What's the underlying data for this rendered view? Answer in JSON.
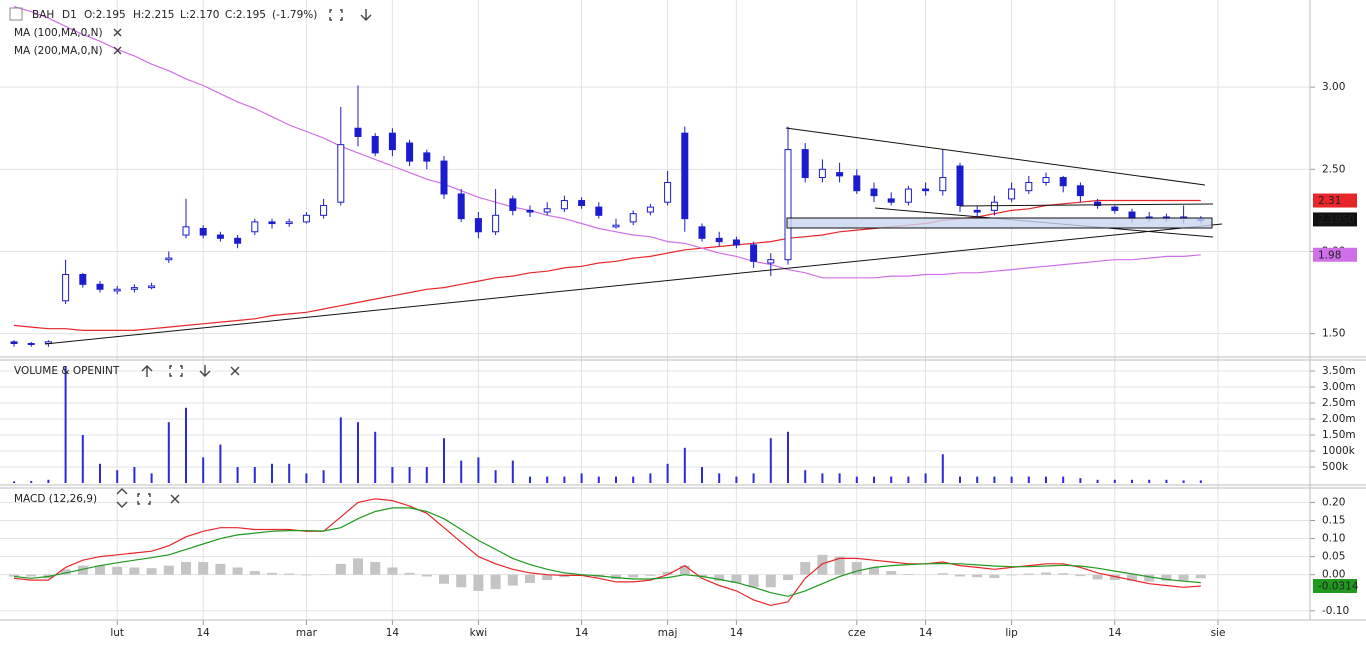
{
  "chart_data": [
    {
      "type": "candlestick",
      "title": "BAH",
      "subtitle": "D1",
      "ohlc": [
        "O:2.195",
        "H:2.215",
        "L:2.170",
        "C:2.195",
        "(-1.79%)"
      ],
      "color": "#1c1ccf",
      "close_label": "2.1950",
      "ylim": [
        1.37,
        3.5
      ],
      "yticks": [
        {
          "value": 1.5,
          "label": "1.50"
        },
        {
          "value": 2,
          "label": "2.00"
        },
        {
          "value": 2.5,
          "label": "2.50"
        },
        {
          "value": 3,
          "label": "3.00"
        }
      ],
      "grid": true,
      "open": [
        1.45,
        1.44,
        1.44,
        1.7,
        1.86,
        1.8,
        1.76,
        1.77,
        1.78,
        1.95,
        2.1,
        2.14,
        2.1,
        2.08,
        2.12,
        2.18,
        2.17,
        2.18,
        2.22,
        2.3,
        2.75,
        2.7,
        2.72,
        2.66,
        2.6,
        2.55,
        2.35,
        2.2,
        2.12,
        2.32,
        2.25,
        2.24,
        2.26,
        2.31,
        2.27,
        2.15,
        2.18,
        2.24,
        2.3,
        2.72,
        2.15,
        2.08,
        2.07,
        2.04,
        1.93,
        1.95,
        2.62,
        2.45,
        2.48,
        2.46,
        2.38,
        2.32,
        2.3,
        2.38,
        2.37,
        2.52,
        2.25,
        2.25,
        2.32,
        2.37,
        2.42,
        2.45,
        2.4,
        2.3,
        2.27,
        2.24,
        2.2,
        2.21,
        2.2,
        2.195,
        null
      ],
      "high": [
        1.46,
        1.45,
        1.46,
        1.95,
        1.87,
        1.82,
        1.79,
        1.8,
        1.81,
        2.0,
        2.32,
        2.16,
        2.12,
        2.1,
        2.2,
        2.2,
        2.2,
        2.24,
        2.32,
        2.88,
        3.01,
        2.72,
        2.75,
        2.68,
        2.62,
        2.58,
        2.38,
        2.24,
        2.38,
        2.34,
        2.28,
        2.3,
        2.34,
        2.33,
        2.3,
        2.2,
        2.25,
        2.29,
        2.49,
        2.76,
        2.17,
        2.12,
        2.09,
        2.06,
        1.99,
        2.76,
        2.66,
        2.56,
        2.54,
        2.5,
        2.42,
        2.36,
        2.4,
        2.42,
        2.62,
        2.54,
        2.28,
        2.34,
        2.42,
        2.46,
        2.48,
        2.46,
        2.42,
        2.32,
        2.28,
        2.26,
        2.24,
        2.23,
        2.28,
        2.215,
        null
      ],
      "low": [
        1.42,
        1.42,
        1.42,
        1.68,
        1.78,
        1.75,
        1.74,
        1.75,
        1.77,
        1.93,
        2.08,
        2.08,
        2.06,
        2.02,
        2.1,
        2.14,
        2.15,
        2.17,
        2.2,
        2.28,
        2.64,
        2.58,
        2.58,
        2.52,
        2.5,
        2.32,
        2.18,
        2.08,
        2.1,
        2.22,
        2.21,
        2.22,
        2.24,
        2.26,
        2.2,
        2.14,
        2.16,
        2.22,
        2.28,
        2.12,
        2.06,
        2.03,
        2.02,
        1.9,
        1.85,
        1.92,
        2.42,
        2.42,
        2.42,
        2.35,
        2.3,
        2.28,
        2.28,
        2.34,
        2.34,
        2.24,
        2.2,
        2.22,
        2.3,
        2.35,
        2.4,
        2.36,
        2.3,
        2.26,
        2.23,
        2.17,
        2.18,
        2.18,
        2.17,
        2.17,
        null
      ],
      "close": [
        1.44,
        1.44,
        1.45,
        1.86,
        1.8,
        1.77,
        1.77,
        1.78,
        1.79,
        1.96,
        2.15,
        2.1,
        2.08,
        2.05,
        2.18,
        2.17,
        2.18,
        2.22,
        2.28,
        2.65,
        2.7,
        2.6,
        2.62,
        2.55,
        2.55,
        2.35,
        2.2,
        2.12,
        2.22,
        2.25,
        2.24,
        2.26,
        2.31,
        2.28,
        2.22,
        2.16,
        2.23,
        2.27,
        2.42,
        2.2,
        2.08,
        2.06,
        2.04,
        1.94,
        1.95,
        2.62,
        2.45,
        2.5,
        2.46,
        2.37,
        2.34,
        2.3,
        2.38,
        2.37,
        2.45,
        2.28,
        2.24,
        2.3,
        2.38,
        2.42,
        2.45,
        2.4,
        2.34,
        2.28,
        2.25,
        2.2,
        2.21,
        2.2,
        2.21,
        2.195,
        null
      ],
      "series": [
        {
          "name": "MA (100,MA,0,N)",
          "color": "#e8262a",
          "last_label": "2.31",
          "values": [
            1.55,
            1.54,
            1.53,
            1.53,
            1.52,
            1.52,
            1.52,
            1.52,
            1.53,
            1.54,
            1.55,
            1.56,
            1.57,
            1.58,
            1.59,
            1.61,
            1.62,
            1.63,
            1.65,
            1.67,
            1.69,
            1.71,
            1.73,
            1.75,
            1.77,
            1.78,
            1.8,
            1.82,
            1.84,
            1.85,
            1.87,
            1.88,
            1.9,
            1.91,
            1.93,
            1.94,
            1.96,
            1.97,
            1.99,
            2.01,
            2.02,
            2.03,
            2.04,
            2.05,
            2.06,
            2.08,
            2.09,
            2.1,
            2.12,
            2.13,
            2.14,
            2.15,
            2.16,
            2.17,
            2.19,
            2.2,
            2.21,
            2.23,
            2.25,
            2.26,
            2.28,
            2.29,
            2.3,
            2.31,
            2.31,
            2.31,
            2.31,
            2.31,
            2.31,
            2.31,
            null
          ]
        },
        {
          "name": "MA (200,MA,0,N)",
          "color": "#d070e8",
          "last_label": "1.98",
          "values": [
            3.49,
            3.46,
            3.42,
            3.37,
            3.32,
            3.28,
            3.23,
            3.19,
            3.14,
            3.1,
            3.05,
            3.01,
            2.96,
            2.91,
            2.87,
            2.82,
            2.77,
            2.73,
            2.69,
            2.64,
            2.6,
            2.56,
            2.52,
            2.48,
            2.44,
            2.41,
            2.37,
            2.33,
            2.3,
            2.27,
            2.25,
            2.22,
            2.2,
            2.17,
            2.14,
            2.12,
            2.1,
            2.09,
            2.06,
            2.05,
            2.02,
            1.99,
            1.97,
            1.94,
            1.92,
            1.89,
            1.87,
            1.84,
            1.84,
            1.84,
            1.84,
            1.85,
            1.85,
            1.86,
            1.86,
            1.87,
            1.87,
            1.88,
            1.89,
            1.9,
            1.91,
            1.92,
            1.93,
            1.94,
            1.95,
            1.95,
            1.96,
            1.97,
            1.97,
            1.98,
            null
          ]
        }
      ]
    },
    {
      "type": "bar",
      "title": "VOLUME & OPENINT",
      "color": "#2a2ad8",
      "ylim": [
        0,
        3.75
      ],
      "yticks": [
        {
          "value": 0.5,
          "label": "500k"
        },
        {
          "value": 1,
          "label": "1000k"
        },
        {
          "value": 1.5,
          "label": "1.50m"
        },
        {
          "value": 2,
          "label": "2.00m"
        },
        {
          "value": 2.5,
          "label": "2.50m"
        },
        {
          "value": 3,
          "label": "3.00m"
        },
        {
          "value": 3.5,
          "label": "3.50m"
        }
      ],
      "values": [
        0.05,
        0.06,
        0.1,
        3.65,
        1.5,
        0.6,
        0.4,
        0.5,
        0.3,
        1.9,
        2.35,
        0.8,
        1.2,
        0.5,
        0.5,
        0.6,
        0.6,
        0.3,
        0.4,
        2.05,
        1.9,
        1.6,
        0.5,
        0.5,
        0.5,
        1.4,
        0.7,
        0.8,
        0.4,
        0.7,
        0.2,
        0.2,
        0.2,
        0.3,
        0.2,
        0.2,
        0.2,
        0.3,
        0.6,
        1.1,
        0.5,
        0.3,
        0.2,
        0.3,
        1.4,
        1.6,
        0.4,
        0.3,
        0.3,
        0.2,
        0.2,
        0.2,
        0.2,
        0.3,
        0.9,
        0.2,
        0.2,
        0.2,
        0.2,
        0.2,
        0.2,
        0.2,
        0.15,
        0.1,
        0.1,
        0.1,
        0.1,
        0.1,
        0.08,
        0.08,
        null
      ]
    },
    {
      "type": "line",
      "title": "MACD (12,26,9)",
      "ylim": [
        -0.12,
        0.24
      ],
      "yticks": [
        {
          "value": -0.1,
          "label": "-0.10"
        },
        {
          "value": 0,
          "label": "0.00"
        },
        {
          "value": 0.05,
          "label": "0.05"
        },
        {
          "value": 0.1,
          "label": "0.10"
        },
        {
          "value": 0.15,
          "label": "0.15"
        },
        {
          "value": 0.2,
          "label": "0.20"
        }
      ],
      "categories": [
        null,
        null,
        null,
        null,
        null,
        null,
        "lut",
        null,
        null,
        null,
        null,
        "14",
        null,
        null,
        null,
        null,
        null,
        "mar",
        null,
        null,
        null,
        null,
        "14",
        null,
        null,
        null,
        null,
        "kwi",
        null,
        null,
        null,
        null,
        null,
        "14",
        null,
        null,
        null,
        null,
        "maj",
        null,
        null,
        null,
        "14",
        null,
        null,
        null,
        null,
        null,
        null,
        "cze",
        null,
        null,
        null,
        "14",
        null,
        null,
        null,
        null,
        "lip",
        null,
        null,
        null,
        null,
        null,
        "14",
        null,
        null,
        null,
        null,
        null,
        "sie"
      ],
      "series": [
        {
          "style": "bar",
          "color": "#c4c4c4",
          "values": [
            -0.005,
            -0.005,
            -0.01,
            0.015,
            0.025,
            0.025,
            0.022,
            0.02,
            0.018,
            0.025,
            0.035,
            0.035,
            0.03,
            0.02,
            0.01,
            0.005,
            0.003,
            -0.002,
            -0.001,
            0.03,
            0.045,
            0.035,
            0.02,
            0.005,
            -0.005,
            -0.025,
            -0.035,
            -0.045,
            -0.04,
            -0.03,
            -0.023,
            -0.015,
            -0.007,
            -0.002,
            -0.007,
            -0.012,
            -0.008,
            -0.003,
            0.008,
            0.025,
            -0.005,
            -0.017,
            -0.023,
            -0.035,
            -0.035,
            -0.015,
            0.035,
            0.055,
            0.05,
            0.035,
            0.02,
            0.01,
            0.002,
            0.0,
            0.004,
            -0.005,
            -0.007,
            -0.009,
            -0.002,
            0.003,
            0.006,
            0.004,
            -0.004,
            -0.013,
            -0.015,
            -0.017,
            -0.019,
            -0.017,
            -0.017,
            -0.01,
            null
          ]
        },
        {
          "style": "line",
          "color": "#e8262a",
          "last_label": "-0.0314",
          "label_color": "#1f9a1f",
          "values": [
            -0.01,
            -0.015,
            -0.015,
            0.02,
            0.04,
            0.05,
            0.055,
            0.06,
            0.065,
            0.08,
            0.105,
            0.12,
            0.13,
            0.13,
            0.125,
            0.125,
            0.125,
            0.12,
            0.12,
            0.16,
            0.2,
            0.21,
            0.205,
            0.19,
            0.17,
            0.13,
            0.09,
            0.05,
            0.03,
            0.015,
            0.005,
            0.0,
            -0.002,
            -0.002,
            -0.01,
            -0.02,
            -0.02,
            -0.015,
            0.0,
            0.025,
            -0.01,
            -0.03,
            -0.045,
            -0.07,
            -0.085,
            -0.075,
            -0.01,
            0.03,
            0.045,
            0.045,
            0.04,
            0.035,
            0.03,
            0.03,
            0.035,
            0.025,
            0.02,
            0.015,
            0.02,
            0.025,
            0.03,
            0.03,
            0.02,
            0.005,
            -0.005,
            -0.015,
            -0.025,
            -0.03,
            -0.035,
            -0.0314,
            null
          ]
        },
        {
          "style": "line",
          "color": "#1f9a1f",
          "values": [
            -0.005,
            -0.01,
            -0.005,
            0.005,
            0.015,
            0.025,
            0.033,
            0.04,
            0.047,
            0.055,
            0.07,
            0.085,
            0.1,
            0.11,
            0.115,
            0.12,
            0.122,
            0.122,
            0.121,
            0.13,
            0.155,
            0.175,
            0.185,
            0.185,
            0.175,
            0.155,
            0.125,
            0.095,
            0.07,
            0.045,
            0.028,
            0.015,
            0.005,
            0.0,
            -0.003,
            -0.008,
            -0.012,
            -0.012,
            -0.008,
            0.0,
            -0.005,
            -0.013,
            -0.022,
            -0.035,
            -0.05,
            -0.06,
            -0.045,
            -0.025,
            -0.005,
            0.01,
            0.02,
            0.025,
            0.028,
            0.03,
            0.031,
            0.03,
            0.027,
            0.024,
            0.022,
            0.022,
            0.024,
            0.026,
            0.024,
            0.018,
            0.01,
            0.002,
            -0.006,
            -0.013,
            -0.018,
            -0.022,
            null
          ]
        }
      ]
    }
  ]
}
